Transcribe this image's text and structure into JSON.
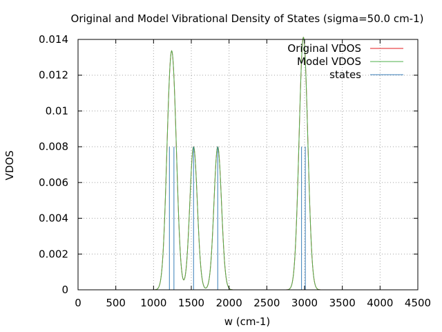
{
  "chart_data": {
    "type": "line",
    "title": "Original and Model Vibrational Density of States (sigma=50.0 cm-1)",
    "xlabel": "w (cm-1)",
    "ylabel": "VDOS",
    "xlim": [
      0,
      4500
    ],
    "ylim": [
      0,
      0.014
    ],
    "x_ticks": [
      0,
      500,
      1000,
      1500,
      2000,
      2500,
      3000,
      3500,
      4000,
      4500
    ],
    "y_ticks": [
      0,
      0.002,
      0.004,
      0.006,
      0.008,
      0.01,
      0.012,
      0.014
    ],
    "x_tick_labels": [
      "0",
      "500",
      "1000",
      "1500",
      "2000",
      "2500",
      "3000",
      "3500",
      "4000",
      "4500"
    ],
    "y_tick_labels": [
      "0",
      "0.002",
      "0.004",
      "0.006",
      "0.008",
      "0.01",
      "0.012",
      "0.014"
    ],
    "grid": true,
    "legend_position": "top-right",
    "sigma": 50.0,
    "series": [
      {
        "name": "Original VDOS",
        "color": "#e41a1c",
        "kind": "line",
        "state_weight": 0.008
      },
      {
        "name": "Model VDOS",
        "color": "#4daf4a",
        "kind": "line",
        "state_weight": 0.008
      },
      {
        "name": "states",
        "color": "#377eb8",
        "kind": "impulses",
        "x": [
          1210,
          1270,
          1530,
          1850,
          2960,
          3010
        ],
        "y": [
          0.008,
          0.008,
          0.008,
          0.008,
          0.008,
          0.008
        ]
      }
    ]
  }
}
